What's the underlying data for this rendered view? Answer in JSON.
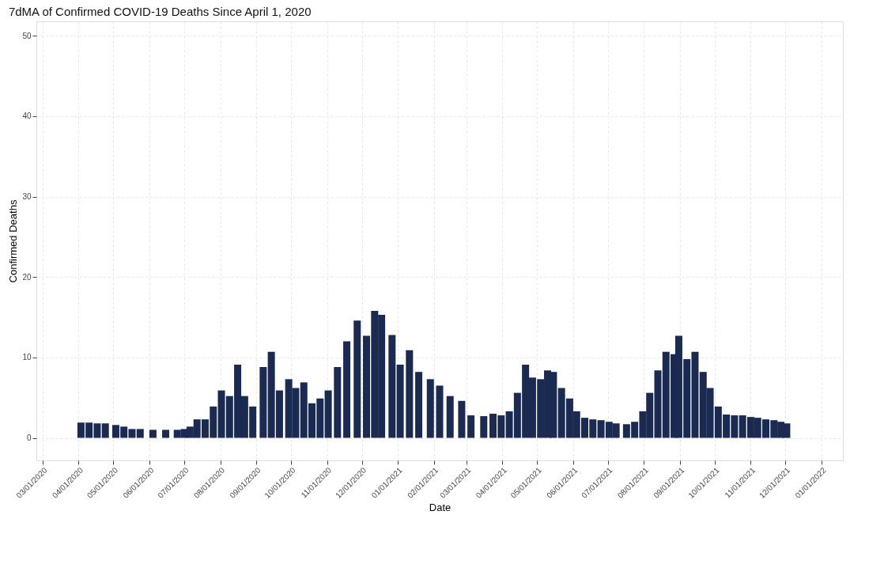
{
  "chart_data": {
    "type": "bar",
    "title": "7dMA of Confirmed COVID-19 Deaths Since April 1, 2020",
    "xlabel": "Date",
    "ylabel": "Confirmed Deaths",
    "x": [
      "2020-04-03",
      "2020-04-10",
      "2020-04-17",
      "2020-04-24",
      "2020-05-03",
      "2020-05-10",
      "2020-05-17",
      "2020-05-24",
      "2020-06-04",
      "2020-06-15",
      "2020-06-25",
      "2020-07-01",
      "2020-07-06",
      "2020-07-12",
      "2020-07-19",
      "2020-07-26",
      "2020-08-02",
      "2020-08-09",
      "2020-08-16",
      "2020-08-22",
      "2020-08-29",
      "2020-09-07",
      "2020-09-14",
      "2020-09-21",
      "2020-09-29",
      "2020-10-05",
      "2020-10-12",
      "2020-10-19",
      "2020-10-26",
      "2020-11-02",
      "2020-11-10",
      "2020-11-18",
      "2020-11-27",
      "2020-12-05",
      "2020-12-12",
      "2020-12-18",
      "2020-12-27",
      "2021-01-03",
      "2021-01-11",
      "2021-01-19",
      "2021-01-29",
      "2021-02-06",
      "2021-02-15",
      "2021-02-25",
      "2021-03-05",
      "2021-03-16",
      "2021-03-24",
      "2021-03-31",
      "2021-04-07",
      "2021-04-14",
      "2021-04-21",
      "2021-04-27",
      "2021-05-04",
      "2021-05-10",
      "2021-05-15",
      "2021-05-22",
      "2021-05-29",
      "2021-06-04",
      "2021-06-11",
      "2021-06-18",
      "2021-06-25",
      "2021-07-02",
      "2021-07-08",
      "2021-07-17",
      "2021-07-24",
      "2021-07-31",
      "2021-08-06",
      "2021-08-13",
      "2021-08-20",
      "2021-08-27",
      "2021-08-31",
      "2021-09-07",
      "2021-09-14",
      "2021-09-21",
      "2021-09-27",
      "2021-10-04",
      "2021-10-11",
      "2021-10-18",
      "2021-10-25",
      "2021-11-01",
      "2021-11-07",
      "2021-11-14",
      "2021-11-21",
      "2021-11-27",
      "2021-12-02"
    ],
    "values": [
      1.9,
      1.9,
      1.8,
      1.8,
      1.6,
      1.4,
      1.1,
      1.1,
      1.0,
      1.0,
      1.0,
      1.1,
      1.4,
      2.3,
      2.3,
      3.9,
      5.9,
      5.2,
      9.1,
      5.2,
      3.9,
      8.8,
      10.7,
      5.9,
      7.3,
      6.2,
      6.9,
      4.3,
      4.9,
      5.9,
      8.8,
      12.0,
      14.6,
      12.7,
      15.8,
      15.3,
      12.8,
      9.1,
      10.9,
      8.2,
      7.3,
      6.5,
      5.2,
      4.6,
      2.8,
      2.7,
      3.0,
      2.8,
      3.3,
      5.6,
      9.1,
      7.5,
      7.3,
      8.4,
      8.2,
      6.2,
      4.9,
      3.3,
      2.5,
      2.3,
      2.2,
      2.0,
      1.8,
      1.7,
      2.0,
      3.3,
      5.6,
      8.4,
      10.7,
      10.4,
      12.7,
      9.8,
      10.7,
      8.2,
      6.2,
      3.9,
      2.9,
      2.8,
      2.8,
      2.6,
      2.5,
      2.3,
      2.2,
      2.0,
      1.8
    ],
    "color": "#1a2a50",
    "xlim": [
      "2020-02-28",
      "2022-01-16"
    ],
    "xticks": [
      {
        "value": "2020-03-01",
        "label": "03/01/2020"
      },
      {
        "value": "2020-04-01",
        "label": "04/01/2020"
      },
      {
        "value": "2020-05-01",
        "label": "05/01/2020"
      },
      {
        "value": "2020-06-01",
        "label": "06/01/2020"
      },
      {
        "value": "2020-07-01",
        "label": "07/01/2020"
      },
      {
        "value": "2020-08-01",
        "label": "08/01/2020"
      },
      {
        "value": "2020-09-01",
        "label": "09/01/2020"
      },
      {
        "value": "2020-10-01",
        "label": "10/01/2020"
      },
      {
        "value": "2020-11-01",
        "label": "11/01/2020"
      },
      {
        "value": "2020-12-01",
        "label": "12/01/2020"
      },
      {
        "value": "2021-01-01",
        "label": "01/01/2021"
      },
      {
        "value": "2021-02-01",
        "label": "02/01/2021"
      },
      {
        "value": "2021-03-01",
        "label": "03/01/2021"
      },
      {
        "value": "2021-04-01",
        "label": "04/01/2021"
      },
      {
        "value": "2021-05-01",
        "label": "05/01/2021"
      },
      {
        "value": "2021-06-01",
        "label": "06/01/2021"
      },
      {
        "value": "2021-07-01",
        "label": "07/01/2021"
      },
      {
        "value": "2021-08-01",
        "label": "08/01/2021"
      },
      {
        "value": "2021-09-01",
        "label": "09/01/2021"
      },
      {
        "value": "2021-10-01",
        "label": "10/01/2021"
      },
      {
        "value": "2021-11-01",
        "label": "11/01/2021"
      },
      {
        "value": "2021-12-01",
        "label": "12/01/2021"
      },
      {
        "value": "2022-01-01",
        "label": "01/01/2022"
      }
    ],
    "ylim": [
      -2.8,
      51.8
    ],
    "yticks": [
      0,
      10,
      20,
      30,
      40,
      50
    ],
    "grid": true
  }
}
